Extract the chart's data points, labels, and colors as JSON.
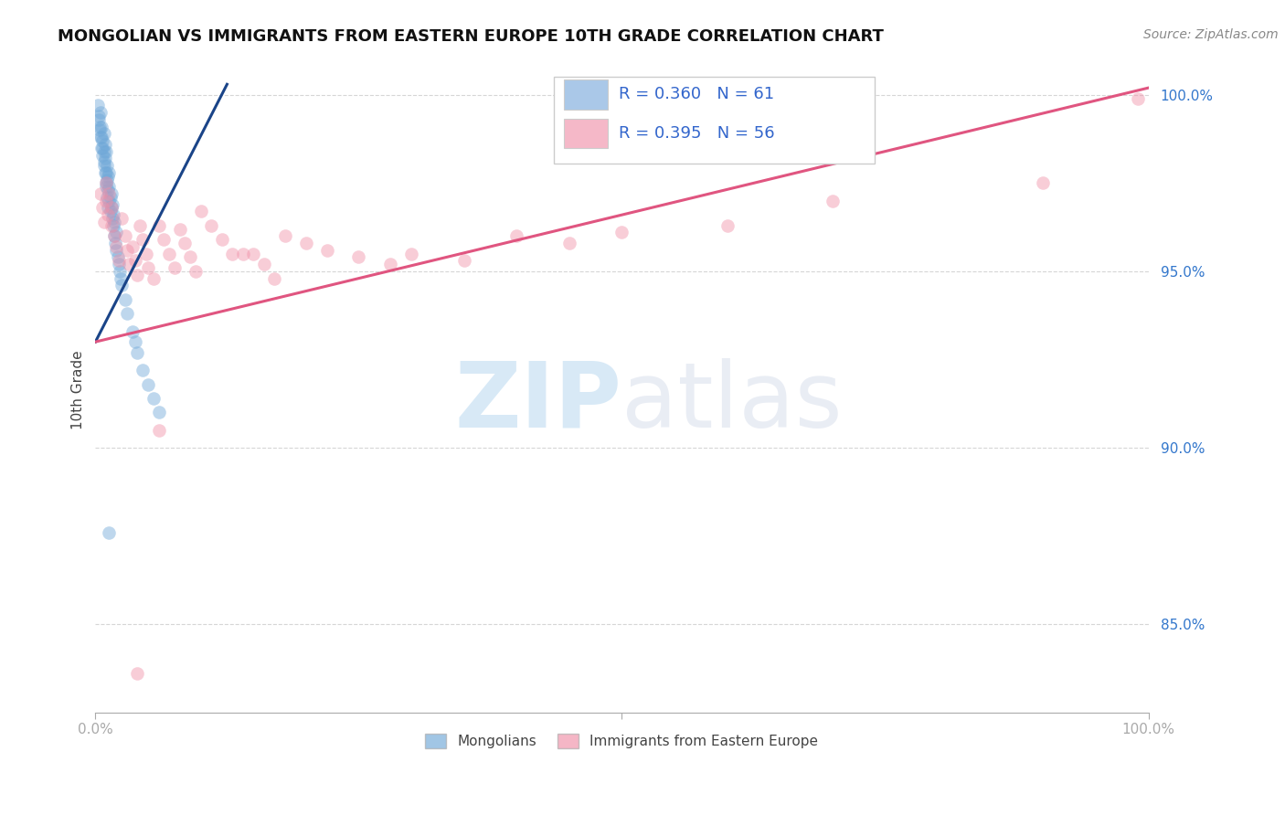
{
  "title": "MONGOLIAN VS IMMIGRANTS FROM EASTERN EUROPE 10TH GRADE CORRELATION CHART",
  "source": "Source: ZipAtlas.com",
  "ylabel": "10th Grade",
  "xlim": [
    0.0,
    1.0
  ],
  "ylim": [
    0.825,
    1.008
  ],
  "yticks": [
    0.85,
    0.9,
    0.95,
    1.0
  ],
  "ytick_labels": [
    "85.0%",
    "90.0%",
    "95.0%",
    "100.0%"
  ],
  "legend_entries": [
    {
      "label": "R = 0.360   N = 61",
      "color": "#aac8e8"
    },
    {
      "label": "R = 0.395   N = 56",
      "color": "#f5b8c8"
    }
  ],
  "legend_bottom": [
    "Mongolians",
    "Immigrants from Eastern Europe"
  ],
  "blue_scatter_x": [
    0.002,
    0.003,
    0.004,
    0.005,
    0.005,
    0.006,
    0.006,
    0.007,
    0.007,
    0.008,
    0.008,
    0.008,
    0.009,
    0.009,
    0.01,
    0.01,
    0.01,
    0.011,
    0.011,
    0.012,
    0.012,
    0.013,
    0.013,
    0.013,
    0.014,
    0.014,
    0.015,
    0.015,
    0.016,
    0.016,
    0.017,
    0.017,
    0.018,
    0.018,
    0.019,
    0.02,
    0.02,
    0.021,
    0.022,
    0.023,
    0.024,
    0.025,
    0.028,
    0.03,
    0.035,
    0.038,
    0.04,
    0.045,
    0.05,
    0.055,
    0.06,
    0.003,
    0.004,
    0.006,
    0.007,
    0.008,
    0.009,
    0.01,
    0.011,
    0.012,
    0.013
  ],
  "blue_scatter_y": [
    0.997,
    0.993,
    0.99,
    0.995,
    0.988,
    0.985,
    0.991,
    0.987,
    0.983,
    0.989,
    0.984,
    0.98,
    0.986,
    0.982,
    0.978,
    0.984,
    0.975,
    0.98,
    0.976,
    0.977,
    0.973,
    0.974,
    0.97,
    0.978,
    0.971,
    0.967,
    0.968,
    0.972,
    0.965,
    0.969,
    0.963,
    0.966,
    0.96,
    0.964,
    0.958,
    0.956,
    0.961,
    0.954,
    0.952,
    0.95,
    0.948,
    0.946,
    0.942,
    0.938,
    0.933,
    0.93,
    0.927,
    0.922,
    0.918,
    0.914,
    0.91,
    0.994,
    0.991,
    0.988,
    0.985,
    0.981,
    0.978,
    0.974,
    0.971,
    0.968,
    0.876
  ],
  "pink_scatter_x": [
    0.005,
    0.007,
    0.008,
    0.01,
    0.01,
    0.012,
    0.013,
    0.015,
    0.015,
    0.018,
    0.02,
    0.022,
    0.025,
    0.028,
    0.03,
    0.032,
    0.035,
    0.038,
    0.04,
    0.042,
    0.045,
    0.048,
    0.05,
    0.055,
    0.06,
    0.065,
    0.07,
    0.075,
    0.08,
    0.085,
    0.09,
    0.095,
    0.1,
    0.11,
    0.12,
    0.13,
    0.14,
    0.15,
    0.16,
    0.17,
    0.18,
    0.2,
    0.22,
    0.25,
    0.28,
    0.3,
    0.35,
    0.4,
    0.45,
    0.5,
    0.6,
    0.7,
    0.9,
    0.99,
    0.04,
    0.06
  ],
  "pink_scatter_y": [
    0.972,
    0.968,
    0.964,
    0.975,
    0.97,
    0.966,
    0.972,
    0.968,
    0.963,
    0.96,
    0.957,
    0.953,
    0.965,
    0.96,
    0.956,
    0.952,
    0.957,
    0.953,
    0.949,
    0.963,
    0.959,
    0.955,
    0.951,
    0.948,
    0.963,
    0.959,
    0.955,
    0.951,
    0.962,
    0.958,
    0.954,
    0.95,
    0.967,
    0.963,
    0.959,
    0.955,
    0.955,
    0.955,
    0.952,
    0.948,
    0.96,
    0.958,
    0.956,
    0.954,
    0.952,
    0.955,
    0.953,
    0.96,
    0.958,
    0.961,
    0.963,
    0.97,
    0.975,
    0.999,
    0.836,
    0.905
  ],
  "blue_line_x": [
    0.0,
    0.125
  ],
  "blue_line_y": [
    0.93,
    1.003
  ],
  "pink_line_x": [
    0.0,
    1.0
  ],
  "pink_line_y": [
    0.93,
    1.002
  ],
  "scatter_size": 110,
  "scatter_alpha": 0.45,
  "blue_color": "#6fa8d8",
  "pink_color": "#f090a8",
  "blue_line_color": "#1a4488",
  "pink_line_color": "#e05580",
  "grid_color": "#cccccc",
  "background_color": "#ffffff",
  "watermark_zip": "ZIP",
  "watermark_atlas": "atlas",
  "title_fontsize": 13,
  "axis_label_fontsize": 11,
  "tick_fontsize": 11,
  "source_fontsize": 10
}
